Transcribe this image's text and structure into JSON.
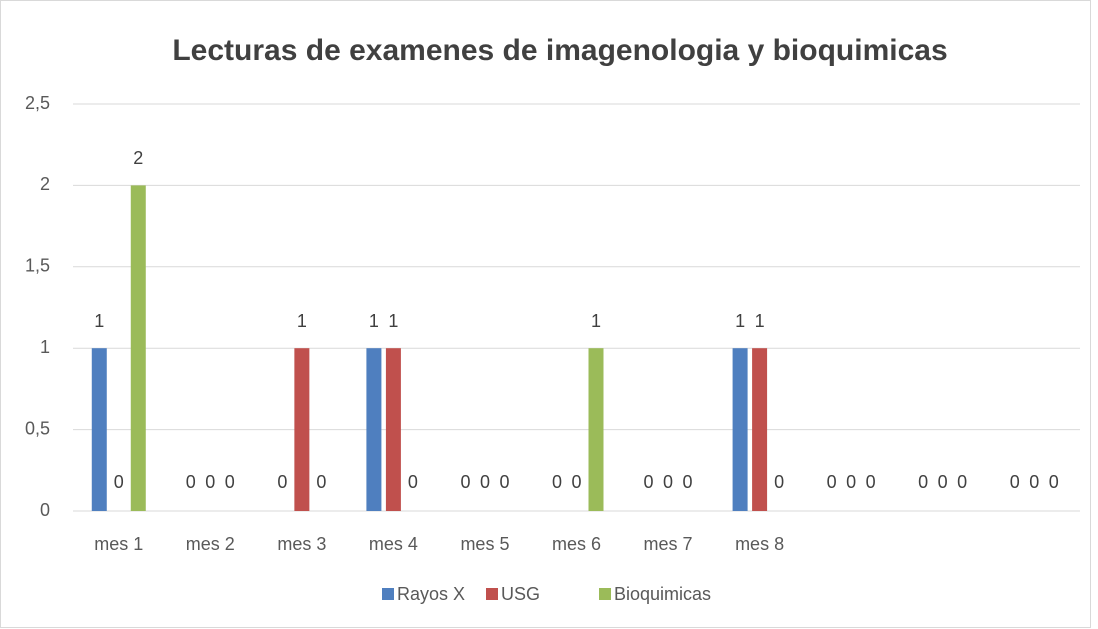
{
  "chart_data": {
    "type": "bar",
    "title": "Lecturas de examenes de imagenologia y bioquimicas",
    "categories": [
      "mes 1",
      "mes 2",
      "mes 3",
      "mes 4",
      "mes 5",
      "mes 6",
      "mes 7",
      "mes 8",
      null,
      null,
      null
    ],
    "series": [
      {
        "name": "Rayos X",
        "color": "#4f7fbf",
        "values": [
          1,
          0,
          0,
          1,
          0,
          0,
          0,
          1,
          0,
          0,
          0
        ]
      },
      {
        "name": "USG",
        "color": "#c0504d",
        "values": [
          0,
          0,
          1,
          1,
          0,
          0,
          0,
          1,
          0,
          0,
          0
        ]
      },
      {
        "name": "Bioquimicas",
        "color": "#9bbb59",
        "values": [
          2,
          0,
          0,
          0,
          0,
          1,
          0,
          0,
          0,
          0,
          0
        ]
      }
    ],
    "ylim": [
      0,
      2.5
    ],
    "yticks": [
      0,
      {
        "value": 0.5,
        "label": "0,5"
      },
      1,
      {
        "value": 1.5,
        "label": "1,5"
      },
      2,
      {
        "value": 2.5,
        "label": "2,5"
      }
    ],
    "grid": true,
    "legend": "bottom"
  }
}
